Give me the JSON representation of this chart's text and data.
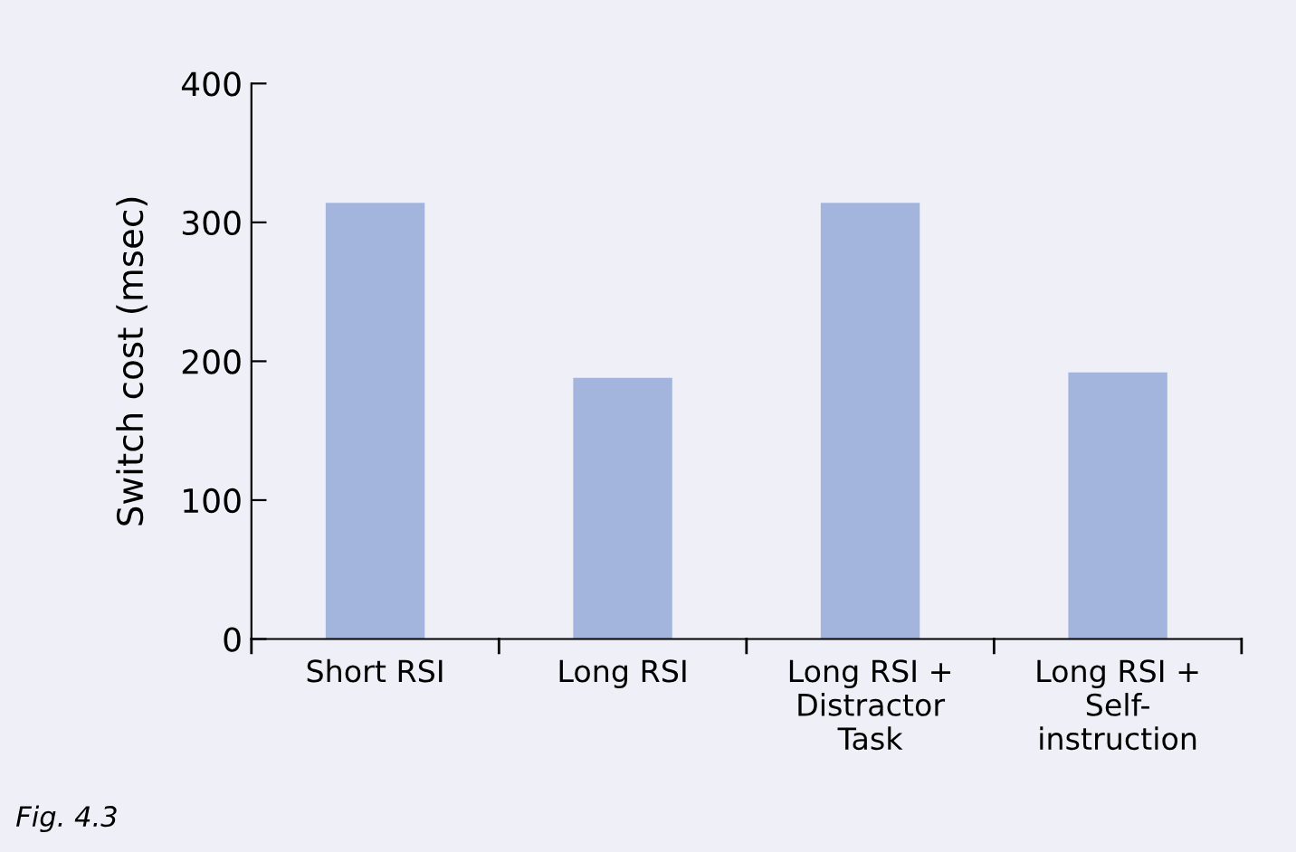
{
  "chart_data": {
    "type": "bar",
    "categories": [
      "Short RSI",
      "Long RSI",
      "Long RSI +\nDistractor\nTask",
      "Long RSI +\nSelf-\ninstruction"
    ],
    "values": [
      314,
      188,
      314,
      192
    ],
    "color": "#a3b5dc",
    "ylabel": "Switch cost (msec)",
    "ylim": [
      0,
      400
    ],
    "yticks": [
      0,
      100,
      200,
      300,
      400
    ],
    "grid": false,
    "legend": false,
    "annotations": [
      "Fig. 4.3"
    ]
  }
}
